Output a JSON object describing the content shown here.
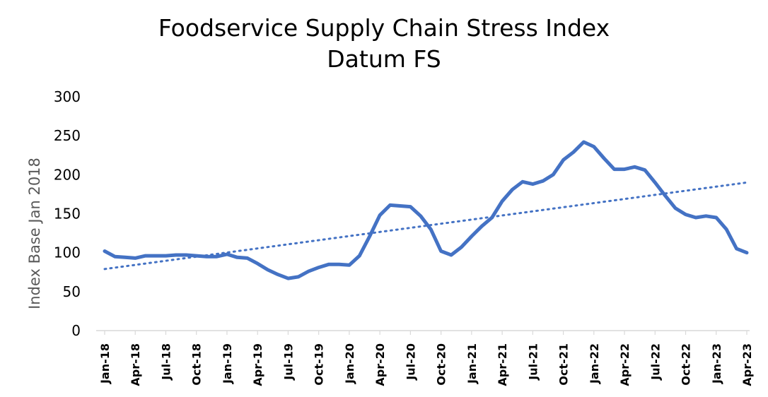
{
  "chart_data": {
    "type": "line",
    "title": "Foodservice Supply Chain Stress Index",
    "subtitle": "Datum FS",
    "xlabel": "",
    "ylabel": "Index Base Jan 2018",
    "ylim": [
      0,
      300
    ],
    "yticks": [
      "0",
      "50",
      "100",
      "150",
      "200",
      "250",
      "300"
    ],
    "grid": false,
    "x": [
      "Jan-18",
      "Feb-18",
      "Mar-18",
      "Apr-18",
      "May-18",
      "Jun-18",
      "Jul-18",
      "Aug-18",
      "Sep-18",
      "Oct-18",
      "Nov-18",
      "Dec-18",
      "Jan-19",
      "Feb-19",
      "Mar-19",
      "Apr-19",
      "May-19",
      "Jun-19",
      "Jul-19",
      "Aug-19",
      "Sep-19",
      "Oct-19",
      "Nov-19",
      "Dec-19",
      "Jan-20",
      "Feb-20",
      "Mar-20",
      "Apr-20",
      "May-20",
      "Jun-20",
      "Jul-20",
      "Aug-20",
      "Sep-20",
      "Oct-20",
      "Nov-20",
      "Dec-20",
      "Jan-21",
      "Feb-21",
      "Mar-21",
      "Apr-21",
      "May-21",
      "Jun-21",
      "Jul-21",
      "Aug-21",
      "Sep-21",
      "Oct-21",
      "Nov-21",
      "Dec-21",
      "Jan-22",
      "Feb-22",
      "Mar-22",
      "Apr-22",
      "May-22",
      "Jun-22",
      "Jul-22",
      "Aug-22",
      "Sep-22",
      "Oct-22",
      "Nov-22",
      "Dec-22",
      "Jan-23",
      "Feb-23",
      "Mar-23",
      "Apr-23"
    ],
    "x_tick_labels": [
      "Jan-18",
      "Apr-18",
      "Jul-18",
      "Oct-18",
      "Jan-19",
      "Apr-19",
      "Jul-19",
      "Oct-19",
      "Jan-20",
      "Apr-20",
      "Jul-20",
      "Oct-20",
      "Jan-21",
      "Apr-21",
      "Jul-21",
      "Oct-21",
      "Jan-22",
      "Apr-22",
      "Jul-22",
      "Oct-22",
      "Jan-23",
      "Apr-23"
    ],
    "series": [
      {
        "name": "Stress Index",
        "color": "#4472C4",
        "values": [
          102,
          95,
          94,
          93,
          96,
          96,
          96,
          97,
          97,
          96,
          95,
          95,
          98,
          94,
          93,
          86,
          78,
          72,
          67,
          69,
          76,
          81,
          85,
          85,
          84,
          96,
          121,
          148,
          161,
          160,
          159,
          147,
          130,
          102,
          97,
          107,
          121,
          134,
          145,
          166,
          181,
          191,
          188,
          192,
          200,
          219,
          229,
          242,
          236,
          221,
          207,
          207,
          210,
          206,
          190,
          173,
          157,
          149,
          145,
          147,
          145,
          130,
          105,
          100
        ]
      },
      {
        "name": "Linear Trend",
        "color": "#4472C4",
        "style": "dotted",
        "values_at_ends": [
          79,
          190
        ]
      }
    ]
  }
}
